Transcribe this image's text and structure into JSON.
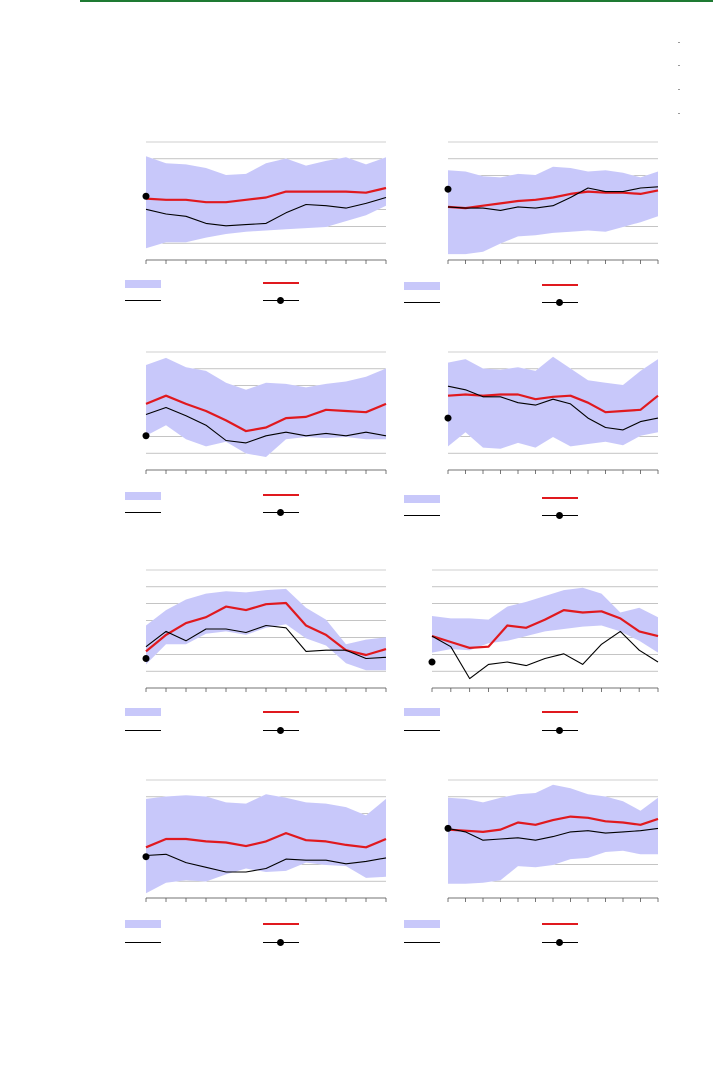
{
  "colors": {
    "band": "#c8c8fa",
    "red": "#e0191e",
    "black": "#000000",
    "grid": "#a0a0a0",
    "rule": "#1e7a32"
  },
  "chart_data": [
    {
      "type": "line",
      "ylim": [
        0,
        1
      ],
      "grid": true,
      "x": [
        0,
        1,
        2,
        3,
        4,
        5,
        6,
        7,
        8,
        9,
        10,
        11,
        12
      ],
      "band_lower": [
        0.1,
        0.15,
        0.15,
        0.19,
        0.22,
        0.24,
        0.25,
        0.26,
        0.27,
        0.28,
        0.33,
        0.38,
        0.46
      ],
      "band_upper": [
        0.88,
        0.82,
        0.81,
        0.78,
        0.72,
        0.73,
        0.82,
        0.86,
        0.8,
        0.84,
        0.87,
        0.81,
        0.87
      ],
      "series": [
        {
          "color": "red",
          "values": [
            0.52,
            0.51,
            0.51,
            0.49,
            0.49,
            0.51,
            0.53,
            0.58,
            0.58,
            0.58,
            0.58,
            0.57,
            0.61
          ]
        },
        {
          "color": "black",
          "values": [
            0.43,
            0.39,
            0.37,
            0.31,
            0.29,
            0.3,
            0.31,
            0.4,
            0.47,
            0.46,
            0.44,
            0.48,
            0.53
          ]
        }
      ],
      "marker": {
        "x": 0,
        "y": 0.54
      }
    },
    {
      "type": "line",
      "ylim": [
        0,
        1
      ],
      "grid": true,
      "x": [
        0,
        1,
        2,
        3,
        4,
        5,
        6,
        7,
        8,
        9,
        10,
        11,
        12
      ],
      "band_lower": [
        0.05,
        0.05,
        0.07,
        0.14,
        0.2,
        0.21,
        0.23,
        0.24,
        0.25,
        0.24,
        0.28,
        0.32,
        0.37
      ],
      "band_upper": [
        0.76,
        0.75,
        0.71,
        0.7,
        0.73,
        0.72,
        0.79,
        0.78,
        0.75,
        0.76,
        0.74,
        0.7,
        0.75
      ],
      "series": [
        {
          "color": "red",
          "values": [
            0.45,
            0.44,
            0.46,
            0.48,
            0.5,
            0.51,
            0.53,
            0.56,
            0.58,
            0.57,
            0.57,
            0.56,
            0.59
          ]
        },
        {
          "color": "black",
          "values": [
            0.45,
            0.44,
            0.44,
            0.42,
            0.45,
            0.44,
            0.46,
            0.53,
            0.61,
            0.58,
            0.58,
            0.61,
            0.62
          ]
        }
      ],
      "marker": {
        "x": 0,
        "y": 0.6
      }
    },
    {
      "type": "line",
      "ylim": [
        0,
        1
      ],
      "grid": true,
      "x": [
        0,
        1,
        2,
        3,
        4,
        5,
        6,
        7,
        8,
        9,
        10,
        11,
        12
      ],
      "band_lower": [
        0.29,
        0.38,
        0.26,
        0.2,
        0.24,
        0.14,
        0.11,
        0.26,
        0.28,
        0.27,
        0.28,
        0.26,
        0.26
      ],
      "band_upper": [
        0.89,
        0.95,
        0.87,
        0.84,
        0.74,
        0.68,
        0.74,
        0.73,
        0.7,
        0.73,
        0.75,
        0.79,
        0.86
      ],
      "series": [
        {
          "color": "red",
          "values": [
            0.56,
            0.63,
            0.56,
            0.5,
            0.42,
            0.33,
            0.36,
            0.44,
            0.45,
            0.51,
            0.5,
            0.49,
            0.56
          ]
        },
        {
          "color": "black",
          "values": [
            0.47,
            0.53,
            0.46,
            0.38,
            0.25,
            0.23,
            0.29,
            0.32,
            0.29,
            0.31,
            0.29,
            0.32,
            0.29
          ]
        }
      ],
      "marker": {
        "x": 0,
        "y": 0.29
      }
    },
    {
      "type": "line",
      "ylim": [
        0,
        1
      ],
      "grid": true,
      "x": [
        0,
        1,
        2,
        3,
        4,
        5,
        6,
        7,
        8,
        9,
        10,
        11,
        12
      ],
      "band_lower": [
        0.2,
        0.32,
        0.19,
        0.18,
        0.23,
        0.19,
        0.28,
        0.2,
        0.22,
        0.24,
        0.21,
        0.29,
        0.32
      ],
      "band_upper": [
        0.91,
        0.94,
        0.86,
        0.85,
        0.87,
        0.84,
        0.96,
        0.86,
        0.76,
        0.74,
        0.72,
        0.84,
        0.94
      ],
      "series": [
        {
          "color": "red",
          "values": [
            0.63,
            0.64,
            0.63,
            0.64,
            0.64,
            0.6,
            0.62,
            0.63,
            0.57,
            0.49,
            0.5,
            0.51,
            0.63
          ]
        },
        {
          "color": "black",
          "values": [
            0.71,
            0.68,
            0.62,
            0.62,
            0.57,
            0.55,
            0.6,
            0.56,
            0.44,
            0.36,
            0.34,
            0.41,
            0.44
          ]
        }
      ],
      "marker": {
        "x": 0,
        "y": 0.44
      }
    },
    {
      "type": "line",
      "ylim": [
        0,
        1
      ],
      "grid": true,
      "x": [
        0,
        1,
        2,
        3,
        4,
        5,
        6,
        7,
        8,
        9,
        10,
        11,
        12
      ],
      "band_lower": [
        0.2,
        0.37,
        0.37,
        0.46,
        0.48,
        0.45,
        0.51,
        0.54,
        0.42,
        0.36,
        0.21,
        0.15,
        0.15
      ],
      "band_upper": [
        0.53,
        0.66,
        0.75,
        0.8,
        0.82,
        0.81,
        0.83,
        0.84,
        0.68,
        0.58,
        0.37,
        0.41,
        0.43
      ],
      "series": [
        {
          "color": "red",
          "values": [
            0.31,
            0.45,
            0.55,
            0.6,
            0.69,
            0.66,
            0.71,
            0.72,
            0.53,
            0.45,
            0.32,
            0.28,
            0.33
          ]
        },
        {
          "color": "black",
          "values": [
            0.35,
            0.48,
            0.4,
            0.5,
            0.5,
            0.47,
            0.53,
            0.51,
            0.31,
            0.32,
            0.32,
            0.25,
            0.26
          ]
        }
      ],
      "marker": {
        "x": 0,
        "y": 0.25
      }
    },
    {
      "type": "line",
      "ylim": [
        0,
        1
      ],
      "grid": true,
      "x": [
        0,
        1,
        2,
        3,
        4,
        5,
        6,
        7,
        8,
        9,
        10,
        11,
        12
      ],
      "band_lower": [
        0.3,
        0.33,
        0.32,
        0.38,
        0.4,
        0.44,
        0.48,
        0.5,
        0.52,
        0.53,
        0.48,
        0.4,
        0.3
      ],
      "band_upper": [
        0.61,
        0.59,
        0.59,
        0.58,
        0.69,
        0.73,
        0.78,
        0.83,
        0.85,
        0.8,
        0.64,
        0.68,
        0.6
      ],
      "series": [
        {
          "color": "red",
          "values": [
            0.44,
            0.39,
            0.34,
            0.35,
            0.53,
            0.51,
            0.58,
            0.66,
            0.64,
            0.65,
            0.59,
            0.48,
            0.44
          ]
        },
        {
          "color": "black",
          "values": [
            0.44,
            0.35,
            0.08,
            0.2,
            0.22,
            0.19,
            0.25,
            0.29,
            0.2,
            0.37,
            0.48,
            0.32,
            0.22
          ]
        }
      ],
      "marker": {
        "x": 0,
        "y": 0.22
      }
    },
    {
      "type": "line",
      "ylim": [
        0,
        1
      ],
      "grid": true,
      "x": [
        0,
        1,
        2,
        3,
        4,
        5,
        6,
        7,
        8,
        9,
        10,
        11,
        12
      ],
      "band_lower": [
        0.04,
        0.13,
        0.15,
        0.14,
        0.2,
        0.25,
        0.22,
        0.23,
        0.3,
        0.28,
        0.27,
        0.17,
        0.18
      ],
      "band_upper": [
        0.84,
        0.86,
        0.87,
        0.86,
        0.81,
        0.8,
        0.88,
        0.85,
        0.81,
        0.8,
        0.77,
        0.7,
        0.84
      ],
      "series": [
        {
          "color": "red",
          "values": [
            0.43,
            0.5,
            0.5,
            0.48,
            0.47,
            0.44,
            0.48,
            0.55,
            0.49,
            0.48,
            0.45,
            0.43,
            0.5
          ]
        },
        {
          "color": "black",
          "values": [
            0.36,
            0.37,
            0.3,
            0.26,
            0.22,
            0.22,
            0.25,
            0.33,
            0.32,
            0.32,
            0.29,
            0.31,
            0.34
          ]
        }
      ],
      "marker": {
        "x": 0,
        "y": 0.35
      }
    },
    {
      "type": "line",
      "ylim": [
        0,
        1
      ],
      "grid": true,
      "x": [
        0,
        1,
        2,
        3,
        4,
        5,
        6,
        7,
        8,
        9,
        10,
        11,
        12
      ],
      "band_lower": [
        0.12,
        0.12,
        0.13,
        0.15,
        0.27,
        0.26,
        0.28,
        0.33,
        0.34,
        0.39,
        0.4,
        0.37,
        0.37
      ],
      "band_upper": [
        0.85,
        0.84,
        0.81,
        0.85,
        0.88,
        0.89,
        0.96,
        0.93,
        0.88,
        0.86,
        0.82,
        0.74,
        0.85
      ],
      "series": [
        {
          "color": "red",
          "values": [
            0.58,
            0.57,
            0.56,
            0.58,
            0.64,
            0.62,
            0.66,
            0.69,
            0.68,
            0.65,
            0.64,
            0.62,
            0.67
          ]
        },
        {
          "color": "black",
          "values": [
            0.59,
            0.56,
            0.49,
            0.5,
            0.51,
            0.49,
            0.52,
            0.56,
            0.57,
            0.55,
            0.56,
            0.57,
            0.59
          ]
        }
      ],
      "marker": {
        "x": 0,
        "y": 0.59
      }
    }
  ]
}
